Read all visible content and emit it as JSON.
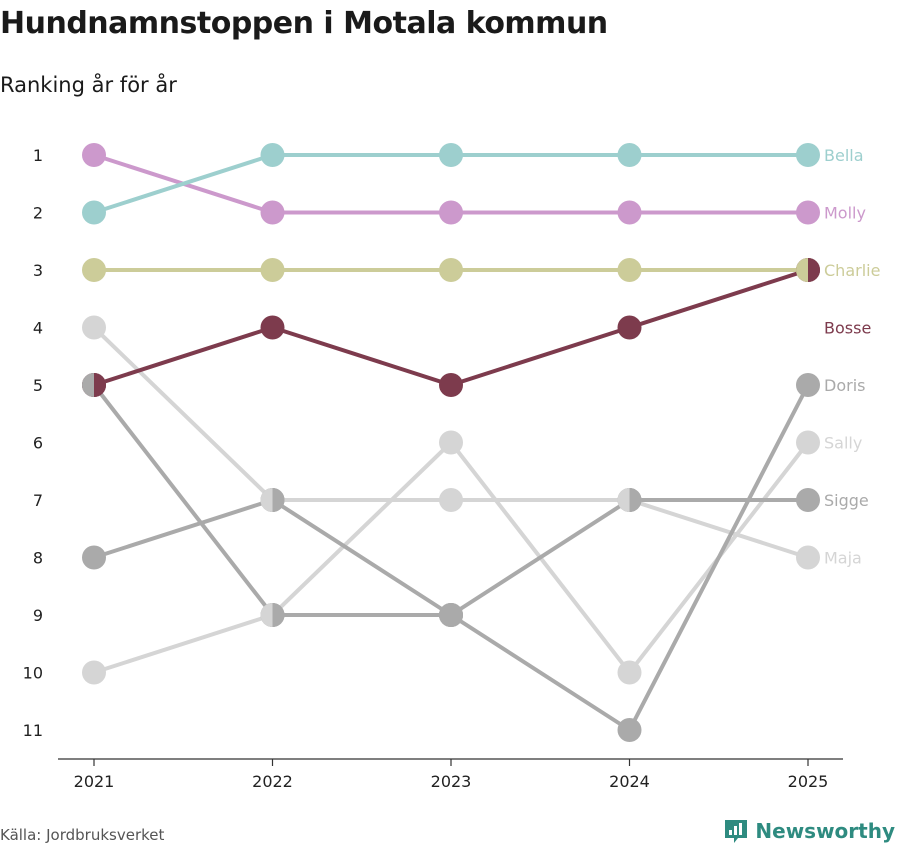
{
  "header": {
    "title": "Hundnamnstoppen i Motala kommun",
    "subtitle": "Ranking år för år"
  },
  "footer": {
    "source": "Källa: Jordbruksverket",
    "brand": "Newsworthy"
  },
  "colors": {
    "Bella": "#9dcfce",
    "Molly": "#cc99cc",
    "Charlie": "#cccc99",
    "Bosse": "#7d3b4d",
    "Doris": "#aaaaaa",
    "Sally": "#d5d5d5",
    "Sigge": "#aaaaaa",
    "Maja": "#d5d5d5",
    "axis": "#333333",
    "brand": "#2e8b80"
  },
  "chart_data": {
    "type": "line",
    "subtype": "bump",
    "title": "Hundnamnstoppen i Motala kommun",
    "subtitle": "Ranking år för år",
    "x": [
      "2021",
      "2022",
      "2023",
      "2024",
      "2025"
    ],
    "y_ticks": [
      "1",
      "2",
      "3",
      "4",
      "5",
      "6",
      "7",
      "8",
      "9",
      "10",
      "11"
    ],
    "ylim": [
      1,
      11
    ],
    "y_inverted": true,
    "series": [
      {
        "name": "Sally",
        "values": [
          10,
          9,
          6,
          10,
          6
        ]
      },
      {
        "name": "Maja",
        "values": [
          4,
          7,
          7,
          7,
          8
        ]
      },
      {
        "name": "Doris",
        "values": [
          5,
          9,
          9,
          11,
          5
        ]
      },
      {
        "name": "Sigge",
        "values": [
          8,
          7,
          9,
          7,
          7
        ]
      },
      {
        "name": "Charlie",
        "values": [
          3,
          3,
          3,
          3,
          3
        ]
      },
      {
        "name": "Molly",
        "values": [
          1,
          2,
          2,
          2,
          2
        ]
      },
      {
        "name": "Bella",
        "values": [
          2,
          1,
          1,
          1,
          1
        ]
      },
      {
        "name": "Bosse",
        "values": [
          5,
          4,
          5,
          4,
          3
        ]
      }
    ],
    "end_labels": [
      "Bella",
      "Molly",
      "Charlie",
      "Bosse",
      "Doris",
      "Sally",
      "Sigge",
      "Maja"
    ],
    "source": "Jordbruksverket"
  }
}
